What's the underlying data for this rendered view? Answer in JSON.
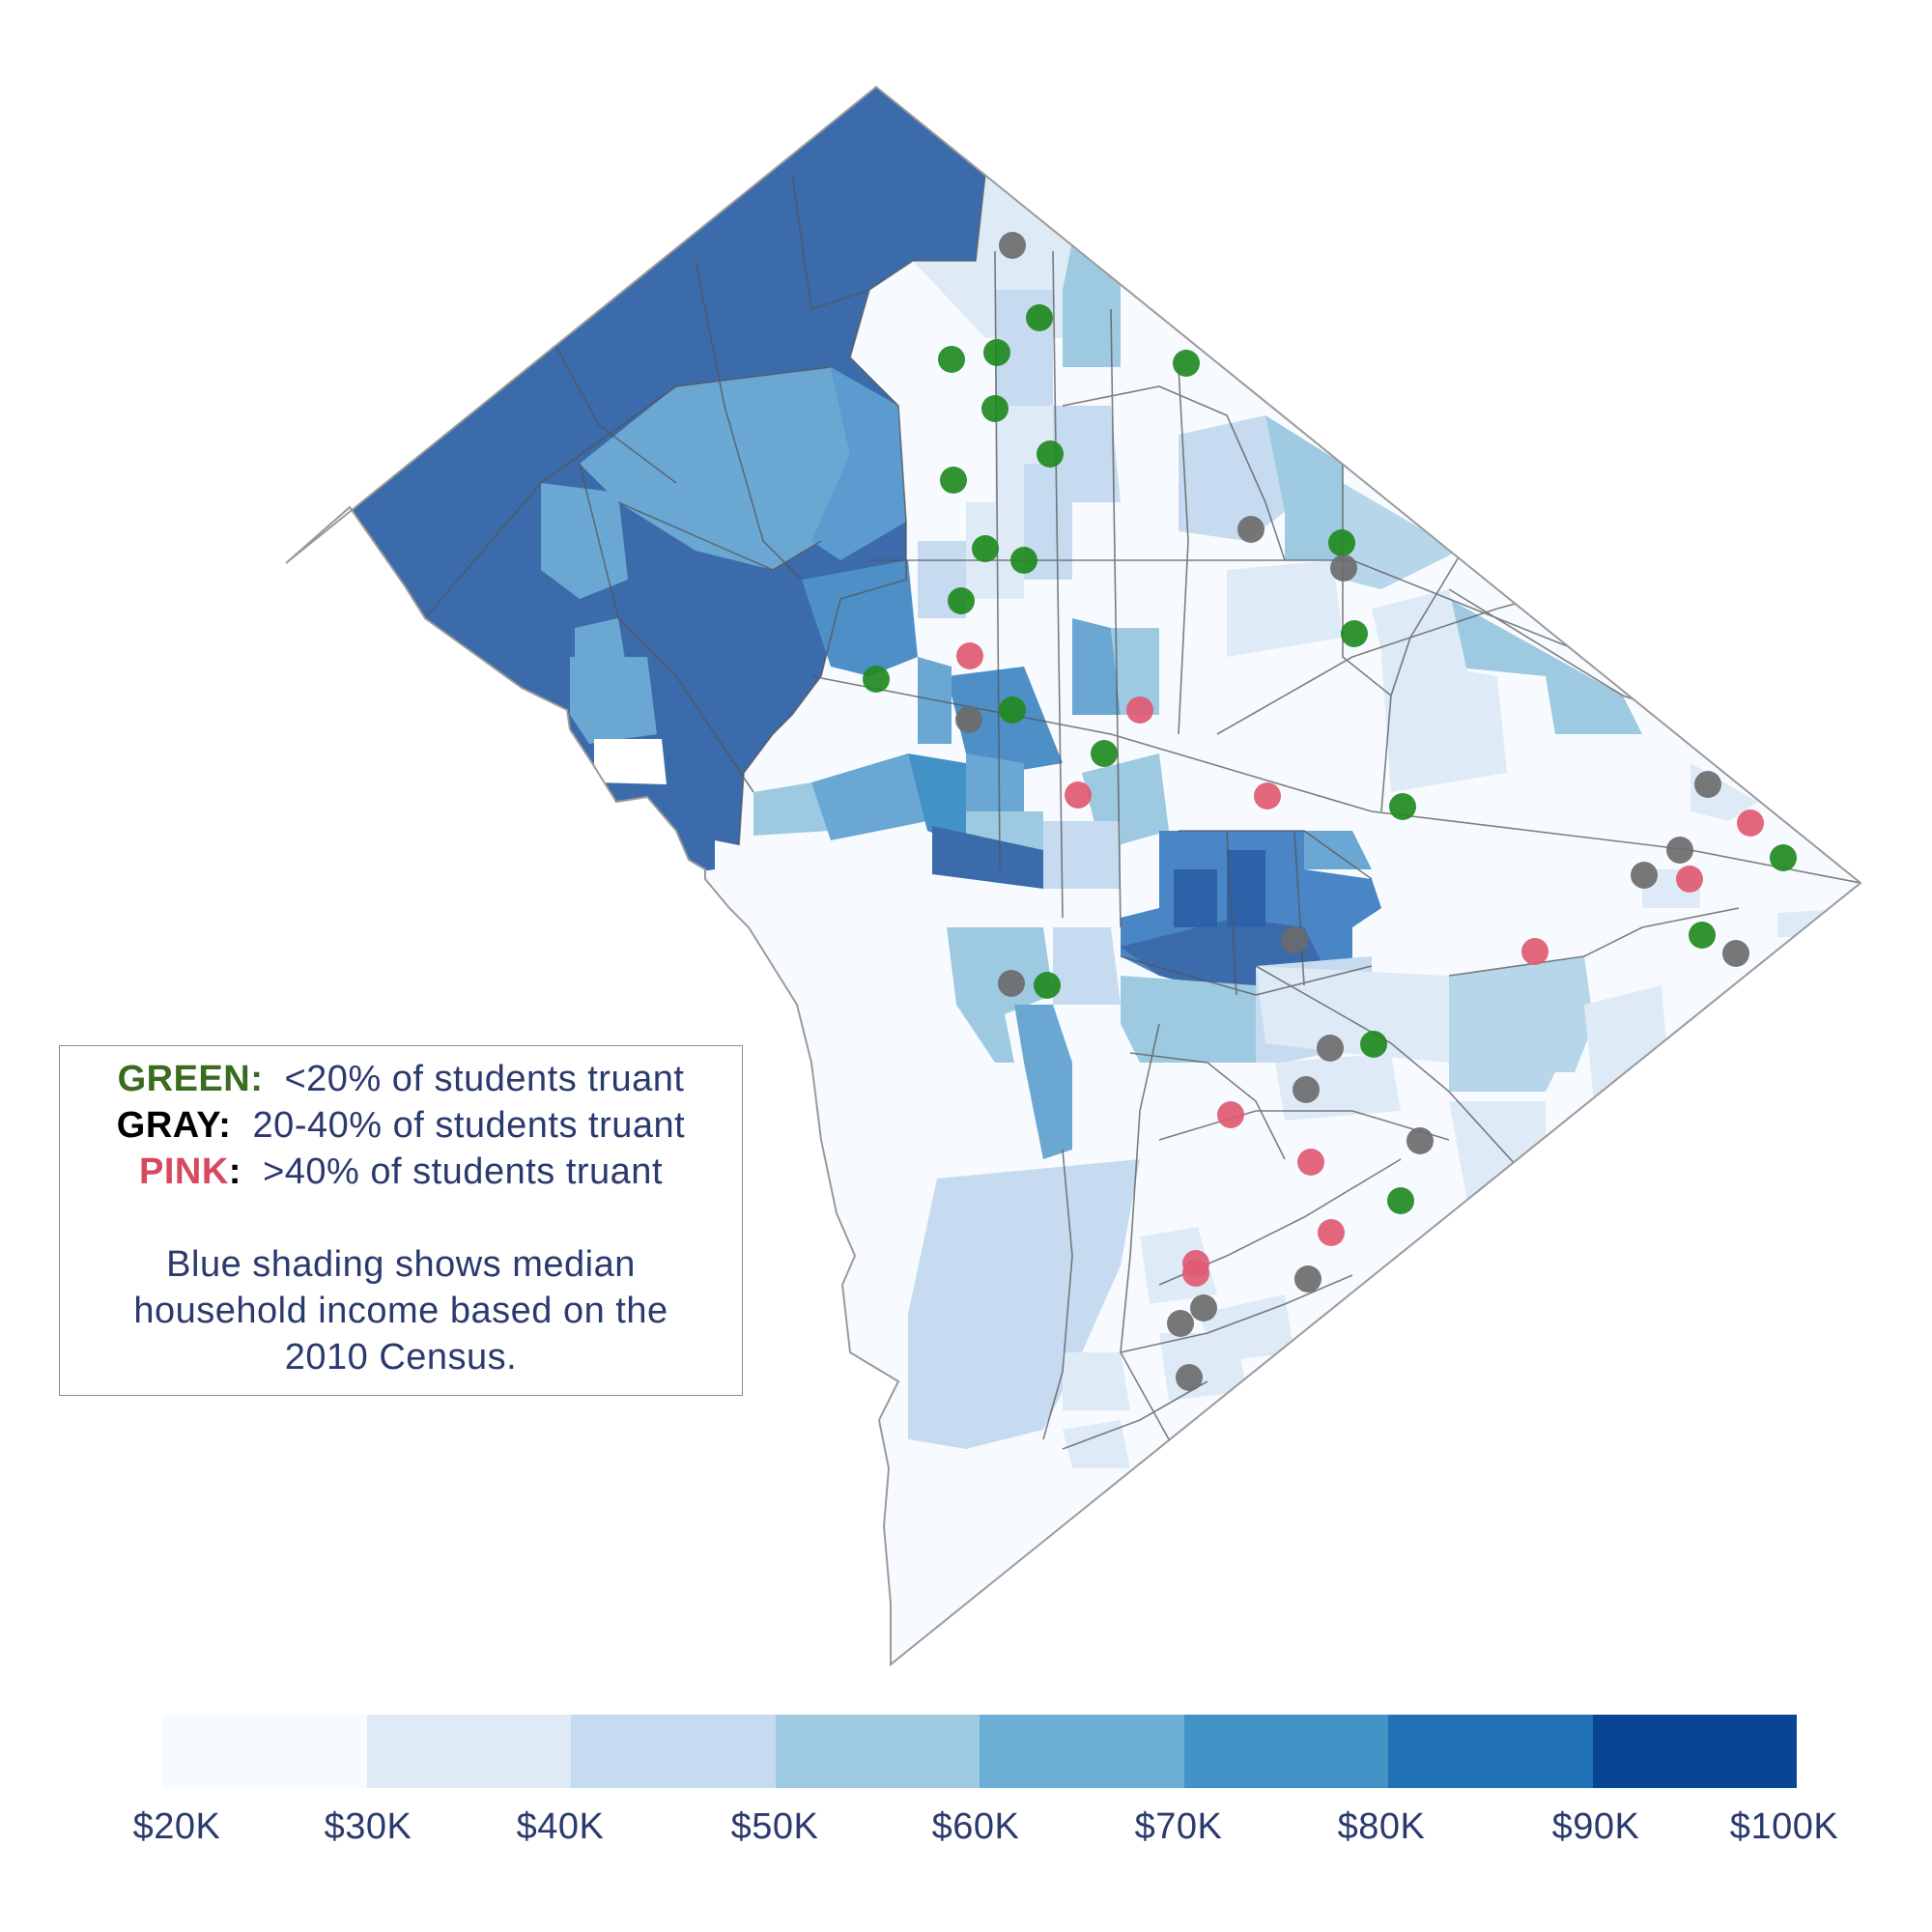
{
  "legend": {
    "green_key": "GREEN:",
    "green_text": "<20% of students truant",
    "gray_key": "GRAY:",
    "gray_text": "20-40% of students truant",
    "pink_key": "PINK",
    "pink_colon": ":",
    "pink_text": ">40% of students truant",
    "note_line1": "Blue shading shows median",
    "note_line2": "household income based on the",
    "note_line3": "2010 Census."
  },
  "color_scale": {
    "colors": [
      "#f7fbff",
      "#deebf7",
      "#c6dbef",
      "#9ecae1",
      "#6baed6",
      "#4292c6",
      "#2171b5",
      "#084594"
    ],
    "tick_labels": [
      "$20K",
      "$30K",
      "$40K",
      "$50K",
      "$60K",
      "$70K",
      "$80K",
      "$90K",
      "$100K"
    ]
  },
  "marker_colors": {
    "green": "#1f8a1f",
    "gray": "#6b6b6b",
    "pink": "#e05a72"
  },
  "region_colors": {
    "boundary": "#555555",
    "outline": "#9a9a9a"
  }
}
